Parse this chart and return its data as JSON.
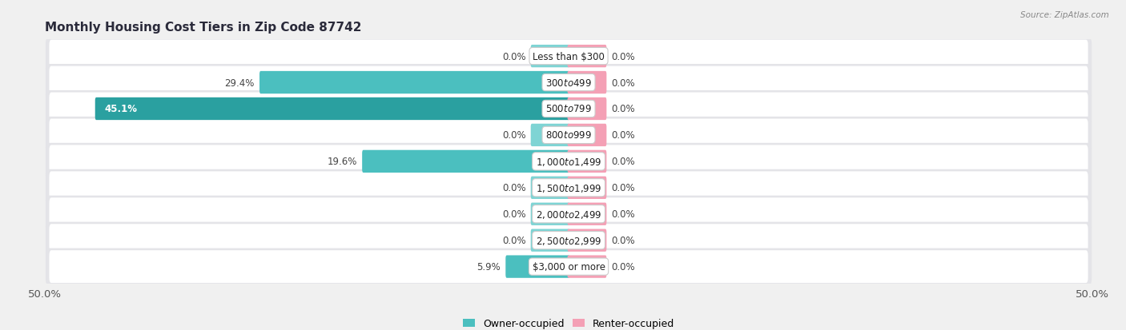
{
  "title": "Monthly Housing Cost Tiers in Zip Code 87742",
  "source": "Source: ZipAtlas.com",
  "categories": [
    "Less than $300",
    "$300 to $499",
    "$500 to $799",
    "$800 to $999",
    "$1,000 to $1,499",
    "$1,500 to $1,999",
    "$2,000 to $2,499",
    "$2,500 to $2,999",
    "$3,000 or more"
  ],
  "owner_values": [
    0.0,
    29.4,
    45.1,
    0.0,
    19.6,
    0.0,
    0.0,
    0.0,
    5.9
  ],
  "renter_values": [
    0.0,
    0.0,
    0.0,
    0.0,
    0.0,
    0.0,
    0.0,
    0.0,
    0.0
  ],
  "owner_color": "#4bbfbf",
  "owner_color_dark": "#2aa0a0",
  "owner_color_light": "#7ed4d4",
  "renter_color": "#f4a0b5",
  "owner_label": "Owner-occupied",
  "renter_label": "Renter-occupied",
  "xlim": 50.0,
  "bg_color": "#f0f0f0",
  "row_color": "#e8e8e8",
  "title_fontsize": 11,
  "bar_height": 0.62,
  "stub_size": 3.5,
  "label_fontsize": 8.5,
  "cat_fontsize": 8.5
}
